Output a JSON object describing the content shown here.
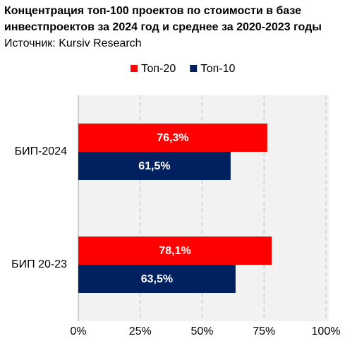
{
  "chart_data": {
    "type": "barh",
    "title": "Концентрация топ-100 проектов по стоимости в базе инвестпроектов за 2024 год и среднее за 2020-2023 годы",
    "subtitle": "Источник: Kursiv Research",
    "categories": [
      "БИП-2024",
      "БИП 20-23"
    ],
    "series": [
      {
        "name": "Топ-20",
        "color": "#ff0000",
        "values": [
          76.3,
          78.1
        ],
        "value_labels": [
          "76,3%",
          "78,1%"
        ]
      },
      {
        "name": "Топ-10",
        "color": "#002060",
        "values": [
          61.5,
          63.5
        ],
        "value_labels": [
          "61,5%",
          "63,5%"
        ]
      }
    ],
    "xlim": [
      0,
      100
    ],
    "xticks": [
      {
        "value": 0,
        "label": "0%"
      },
      {
        "value": 25,
        "label": "25%"
      },
      {
        "value": 50,
        "label": "50%"
      },
      {
        "value": 75,
        "label": "75%"
      },
      {
        "value": 100,
        "label": "100%"
      }
    ],
    "grid": true,
    "legend": "top"
  }
}
